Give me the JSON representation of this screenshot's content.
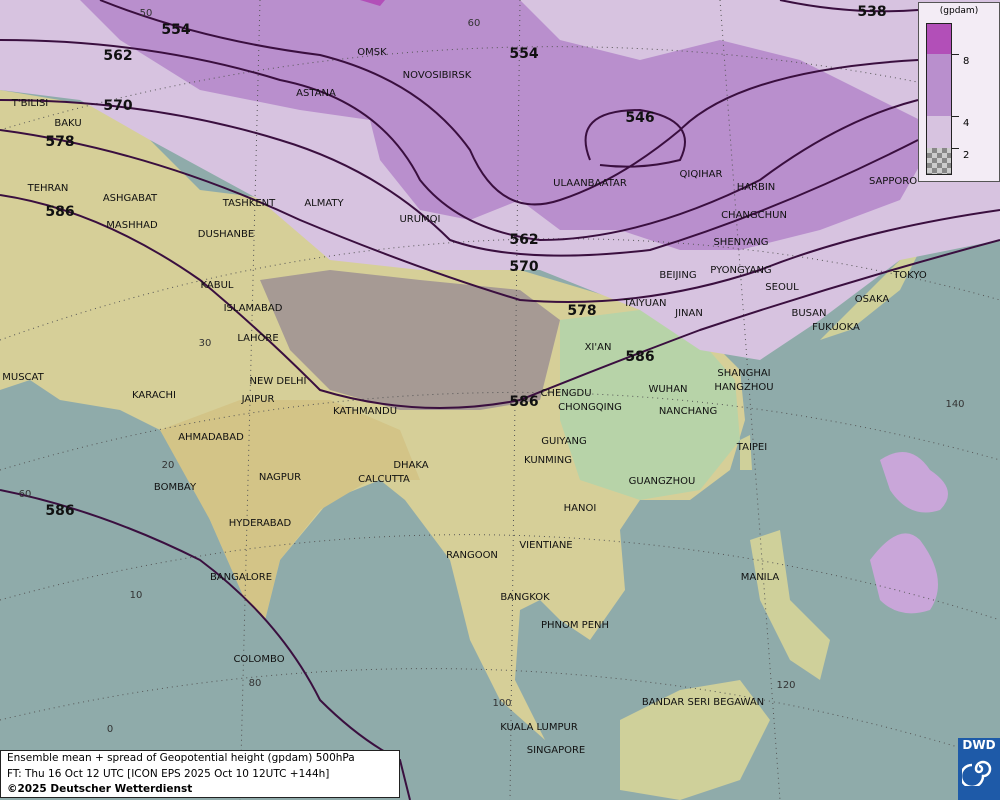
{
  "map": {
    "title": "Ensemble mean + spread of Geopotential height (gpdam) 500hPa",
    "forecast_time": "FT: Thu 16 Oct 12 UTC [ICON EPS 2025 Oct 10 12UTC +144h]",
    "copyright": "©2025 Deutscher Wetterdienst",
    "logo": "DWD",
    "colors": {
      "sea": "#8fabaa",
      "land": "#d8d19a",
      "spread_2_4": "#d7c3e0",
      "spread_4_8": "#b98fcd",
      "spread_8plus": "#b24fb8",
      "contour": "#3a0f3f"
    },
    "legend": {
      "unit": "(gpdam)",
      "ticks": [
        "8",
        "4",
        "2"
      ]
    },
    "contours": [
      "538",
      "546",
      "554",
      "554",
      "562",
      "562",
      "570",
      "570",
      "578",
      "578",
      "586",
      "586",
      "586",
      "586"
    ],
    "latitude_labels": [
      "50",
      "60",
      "30",
      "20",
      "10",
      "0",
      "60"
    ],
    "longitude_labels": [
      "140",
      "80",
      "100",
      "120"
    ],
    "cities": [
      "OMSK",
      "NOVOSIBIRSK",
      "ASTANA",
      "T'BILISI",
      "BAKU",
      "TEHRAN",
      "ASHGABAT",
      "MASHHAD",
      "TASHKENT",
      "ALMATY",
      "DUSHANBE",
      "URUMQI",
      "ULAANBAATAR",
      "QIQIHAR",
      "HARBIN",
      "CHANGCHUN",
      "SHENYANG",
      "SAPPORO",
      "BEIJING",
      "PYONGYANG",
      "SEOUL",
      "TOKYO",
      "OSAKA",
      "BUSAN",
      "FUKUOKA",
      "TAIYUAN",
      "JINAN",
      "KABUL",
      "ISLAMABAD",
      "LAHORE",
      "XI'AN",
      "SHANGHAI",
      "HANGZHOU",
      "WUHAN",
      "NANCHANG",
      "CHENGDU",
      "CHONGQING",
      "NEW DELHI",
      "MUSCAT",
      "KARACHI",
      "JAIPUR",
      "KATHMANDU",
      "AHMADABAD",
      "GUIYANG",
      "TAIPEI",
      "KUNMING",
      "DHAKA",
      "CALCUTTA",
      "NAGPUR",
      "BOMBAY",
      "GUANGZHOU",
      "HANOI",
      "HYDERABAD",
      "RANGOON",
      "VIENTIANE",
      "BANGALORE",
      "MANILA",
      "BANGKOK",
      "PHNOM PENH",
      "COLOMBO",
      "BANDAR SERI BEGAWAN",
      "KUALA LUMPUR",
      "SINGAPORE"
    ]
  }
}
